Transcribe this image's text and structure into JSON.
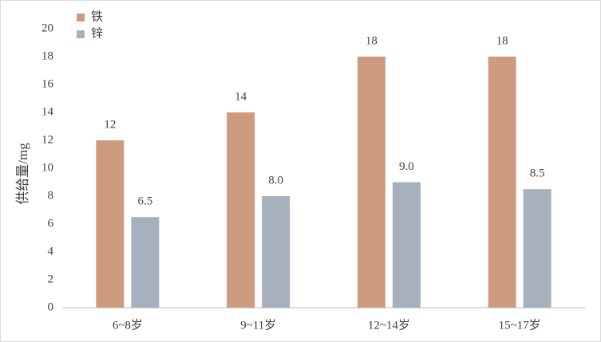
{
  "chart_data": {
    "type": "bar",
    "y_label": "供给量/mg",
    "categories": [
      "6~8岁",
      "9~11岁",
      "12~14岁",
      "15~17岁"
    ],
    "series": [
      {
        "name": "铁",
        "color": "#cd9c80",
        "values": [
          12,
          14,
          18,
          18
        ],
        "value_labels": [
          "12",
          "14",
          "18",
          "18"
        ]
      },
      {
        "name": "锌",
        "color": "#a6b1bd",
        "values": [
          6.5,
          8.0,
          9.0,
          8.5
        ],
        "value_labels": [
          "6.5",
          "8.0",
          "9.0",
          "8.5"
        ]
      }
    ],
    "ylim": [
      0,
      20
    ],
    "yticks": [
      0,
      2,
      4,
      6,
      8,
      10,
      12,
      14,
      16,
      18,
      20
    ],
    "grid": false,
    "legend": "top-left"
  }
}
